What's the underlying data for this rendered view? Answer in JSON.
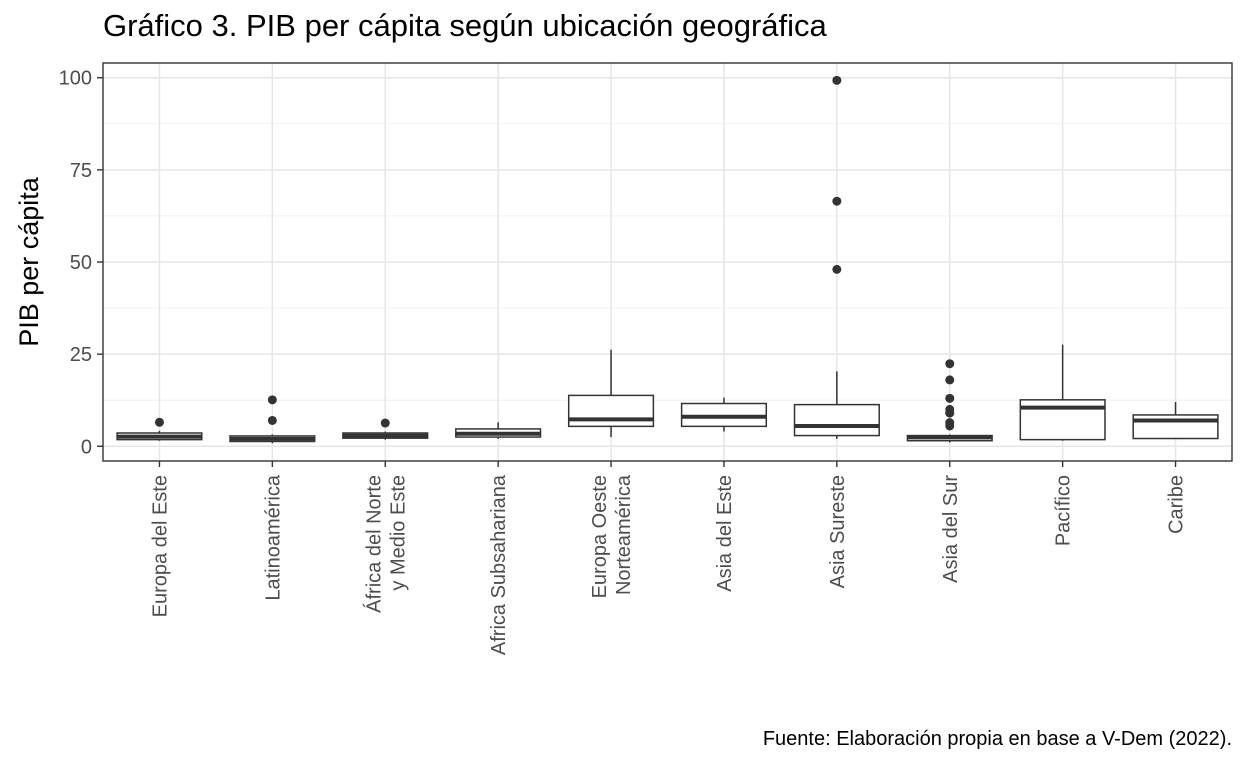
{
  "chart_data": {
    "type": "boxplot",
    "title": "Gráfico 3. PIB per cápita según ubicación geográfica",
    "caption": "Fuente: Elaboración propia en base a V-Dem (2022).",
    "xlabel": "",
    "ylabel": "PIB per cápita",
    "ylim": [
      -4,
      104
    ],
    "yticks": [
      0,
      25,
      50,
      75,
      100
    ],
    "ytick_labels": [
      "0",
      "25",
      "50",
      "75",
      "100"
    ],
    "grid": true,
    "categories": [
      {
        "label": [
          "Europa del Este"
        ],
        "min": 1.5,
        "q1": 1.8,
        "median": 2.6,
        "q3": 3.6,
        "max": 4.2,
        "outliers": [
          6.5
        ]
      },
      {
        "label": [
          "Latinoamérica"
        ],
        "min": 0.8,
        "q1": 1.3,
        "median": 2.0,
        "q3": 2.8,
        "max": 3.2,
        "outliers": [
          7.0,
          12.6
        ]
      },
      {
        "label": [
          "África del Norte",
          "y Medio Este"
        ],
        "min": 1.8,
        "q1": 2.2,
        "median": 2.9,
        "q3": 3.6,
        "max": 4.0,
        "outliers": [
          6.3
        ]
      },
      {
        "label": [
          "Africa Subsahariana"
        ],
        "min": 2.0,
        "q1": 2.5,
        "median": 3.4,
        "q3": 4.7,
        "max": 6.5,
        "outliers": []
      },
      {
        "label": [
          "Europa Oeste",
          "Norteamérica"
        ],
        "min": 2.5,
        "q1": 5.4,
        "median": 7.3,
        "q3": 13.8,
        "max": 26.2,
        "outliers": []
      },
      {
        "label": [
          "Asia del Este"
        ],
        "min": 4.0,
        "q1": 5.4,
        "median": 8.0,
        "q3": 11.6,
        "max": 13.2,
        "outliers": []
      },
      {
        "label": [
          "Asia Sureste"
        ],
        "min": 2.0,
        "q1": 2.9,
        "median": 5.5,
        "q3": 11.3,
        "max": 20.3,
        "outliers": [
          48.0,
          66.5,
          99.3
        ]
      },
      {
        "label": [
          "Asia del Sur"
        ],
        "min": 1.0,
        "q1": 1.5,
        "median": 2.4,
        "q3": 2.9,
        "max": 3.2,
        "outliers": [
          5.5,
          6.4,
          9.0,
          10.0,
          13.0,
          18.0,
          22.4
        ]
      },
      {
        "label": [
          "Pacífico"
        ],
        "min": 1.5,
        "q1": 1.8,
        "median": 10.5,
        "q3": 12.6,
        "max": 27.6,
        "outliers": []
      },
      {
        "label": [
          "Caribe"
        ],
        "min": 2.0,
        "q1": 2.1,
        "median": 7.0,
        "q3": 8.5,
        "max": 12.0,
        "outliers": []
      }
    ]
  }
}
